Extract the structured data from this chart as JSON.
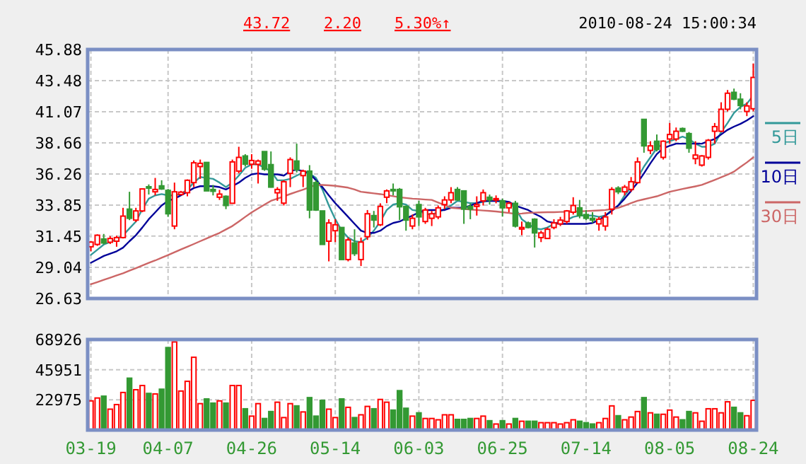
{
  "chart_data": [
    {
      "type": "candlestick",
      "categories": [
        null,
        null,
        null,
        null,
        null,
        null,
        null,
        null,
        null,
        null,
        null,
        null,
        null,
        null,
        null,
        null,
        null,
        null,
        null,
        null,
        null,
        null,
        null,
        null,
        null,
        null,
        null,
        null,
        null,
        null,
        null,
        null,
        null,
        null,
        null,
        null,
        null,
        null,
        null,
        null,
        null,
        null,
        null,
        null,
        null,
        null,
        null,
        null,
        null,
        null,
        null,
        null,
        null,
        null,
        null,
        null,
        null,
        null,
        null,
        null,
        null,
        null,
        null,
        null,
        null,
        null,
        null,
        null,
        null,
        null,
        null,
        null,
        null,
        null,
        null,
        null,
        null,
        null,
        null,
        null,
        null,
        null,
        null,
        null,
        null,
        null,
        null,
        null,
        null,
        null,
        null,
        null,
        null,
        null,
        null,
        null,
        null,
        null,
        null,
        null,
        null,
        null,
        null,
        null
      ],
      "tick_labels": "y",
      "ylim": [
        26.63,
        45.88
      ],
      "yticks": [
        26.63,
        29.04,
        31.45,
        33.85,
        36.26,
        38.66,
        41.07,
        43.48,
        45.88
      ],
      "grid": true,
      "legend": "right",
      "annotations": [
        "43.72",
        "2.20",
        "5.30%↑",
        "2010-08-24 15:00:34"
      ],
      "series": [
        {
          "ohlc": [
            [
              30.63,
              31.06,
              30.28,
              30.99
            ],
            [
              30.81,
              31.59,
              30.7,
              31.52
            ],
            [
              31.23,
              31.62,
              30.81,
              30.92
            ],
            [
              30.98,
              31.45,
              30.84,
              31.27
            ],
            [
              31.06,
              31.48,
              30.63,
              31.34
            ],
            [
              31.34,
              33.64,
              31.27,
              33.0
            ],
            [
              33.54,
              34.88,
              32.69,
              32.83
            ],
            [
              32.69,
              33.64,
              32.54,
              33.4
            ],
            [
              33.4,
              35.1,
              33.3,
              35.1
            ],
            [
              35.27,
              35.45,
              34.67,
              35.2
            ],
            [
              34.88,
              35.95,
              34.6,
              35.06
            ],
            [
              35.34,
              35.77,
              35.03,
              35.1
            ],
            [
              34.99,
              35.1,
              32.94,
              33.18
            ],
            [
              32.23,
              35.59,
              31.98,
              34.88
            ],
            [
              34.67,
              34.95,
              34.6,
              34.85
            ],
            [
              34.81,
              35.84,
              34.53,
              35.77
            ],
            [
              35.59,
              37.3,
              35.24,
              37.12
            ],
            [
              36.83,
              37.37,
              35.88,
              37.08
            ],
            [
              37.15,
              37.15,
              34.95,
              34.95
            ],
            [
              35.06,
              35.41,
              34.6,
              34.92
            ],
            [
              34.46,
              35.03,
              34.25,
              34.7
            ],
            [
              34.53,
              34.6,
              33.54,
              33.82
            ],
            [
              33.99,
              37.37,
              33.99,
              37.19
            ],
            [
              36.48,
              38.36,
              36.3,
              37.54
            ],
            [
              37.65,
              37.79,
              36.83,
              37.01
            ],
            [
              37.01,
              37.79,
              36.66,
              37.3
            ],
            [
              37.0,
              37.37,
              35.52,
              37.26
            ],
            [
              37.99,
              38.0,
              36.5,
              36.62
            ],
            [
              36.98,
              38.0,
              35.2,
              35.24
            ],
            [
              34.8,
              35.24,
              34.18,
              35.06
            ],
            [
              34.0,
              35.77,
              33.82,
              35.66
            ],
            [
              36.3,
              37.54,
              35.24,
              37.37
            ],
            [
              37.26,
              38.6,
              36.37,
              36.59
            ],
            [
              36.13,
              36.59,
              35.24,
              36.48
            ],
            [
              36.48,
              36.94,
              32.83,
              33.47
            ],
            [
              35.59,
              35.77,
              33.4,
              33.47
            ],
            [
              33.4,
              33.4,
              30.81,
              30.81
            ],
            [
              31.06,
              32.76,
              29.5,
              32.47
            ],
            [
              31.87,
              32.76,
              30.99,
              32.33
            ],
            [
              32.12,
              32.12,
              29.64,
              29.64
            ],
            [
              29.64,
              31.34,
              29.5,
              31.16
            ],
            [
              30.92,
              31.98,
              29.92,
              30.1
            ],
            [
              29.64,
              31.34,
              29.14,
              30.99
            ],
            [
              31.41,
              33.47,
              31.16,
              33.18
            ],
            [
              33.04,
              33.4,
              32.12,
              32.69
            ],
            [
              32.33,
              33.99,
              32.23,
              33.75
            ],
            [
              34.46,
              35.06,
              34.0,
              34.95
            ],
            [
              35.06,
              35.52,
              34.6,
              34.95
            ],
            [
              35.06,
              35.17,
              32.69,
              33.72
            ],
            [
              33.75,
              33.82,
              31.87,
              32.69
            ],
            [
              32.23,
              33.12,
              31.98,
              32.83
            ],
            [
              33.89,
              34.18,
              32.23,
              32.94
            ],
            [
              32.58,
              33.64,
              32.4,
              33.47
            ],
            [
              32.83,
              33.4,
              32.23,
              33.18
            ],
            [
              32.94,
              33.82,
              32.76,
              33.64
            ],
            [
              33.89,
              34.53,
              33.54,
              34.25
            ],
            [
              34.25,
              35.24,
              34.0,
              34.81
            ],
            [
              35.06,
              35.24,
              34.18,
              34.25
            ],
            [
              34.95,
              34.95,
              32.4,
              33.54
            ],
            [
              33.75,
              33.99,
              32.76,
              33.54
            ],
            [
              33.75,
              34.53,
              33.04,
              33.89
            ],
            [
              34.18,
              35.06,
              33.82,
              34.81
            ],
            [
              34.46,
              34.67,
              33.89,
              34.25
            ],
            [
              34.25,
              34.6,
              33.99,
              34.35
            ],
            [
              34.18,
              34.35,
              32.96,
              33.64
            ],
            [
              33.64,
              34.1,
              33.3,
              33.99
            ],
            [
              33.99,
              34.18,
              32.12,
              32.23
            ],
            [
              32.0,
              32.58,
              31.52,
              32.12
            ],
            [
              32.47,
              32.58,
              32.05,
              32.12
            ],
            [
              32.76,
              32.83,
              30.57,
              31.7
            ],
            [
              31.34,
              31.87,
              30.99,
              31.7
            ],
            [
              31.27,
              32.12,
              31.27,
              31.98
            ],
            [
              32.12,
              32.76,
              31.98,
              32.47
            ],
            [
              32.4,
              32.94,
              32.23,
              32.69
            ],
            [
              32.58,
              33.47,
              32.4,
              33.4
            ],
            [
              33.3,
              34.46,
              33.12,
              33.82
            ],
            [
              33.64,
              34.25,
              32.83,
              33.04
            ],
            [
              33.12,
              33.47,
              32.69,
              32.83
            ],
            [
              32.83,
              33.3,
              32.47,
              32.69
            ],
            [
              32.4,
              32.94,
              31.87,
              32.76
            ],
            [
              32.23,
              33.3,
              31.87,
              32.94
            ],
            [
              33.54,
              35.24,
              33.12,
              35.06
            ],
            [
              35.17,
              35.31,
              34.7,
              34.88
            ],
            [
              34.88,
              35.41,
              34.6,
              35.24
            ],
            [
              35.06,
              36.02,
              34.88,
              35.66
            ],
            [
              35.59,
              37.54,
              35.52,
              37.19
            ],
            [
              40.48,
              40.48,
              37.9,
              38.43
            ],
            [
              38.08,
              38.79,
              37.79,
              38.43
            ],
            [
              38.79,
              39.31,
              38.0,
              38.15
            ],
            [
              37.54,
              38.86,
              37.37,
              38.79
            ],
            [
              38.96,
              40.2,
              38.6,
              39.31
            ],
            [
              38.96,
              39.85,
              38.79,
              39.56
            ],
            [
              39.77,
              39.85,
              39.5,
              39.56
            ],
            [
              39.38,
              39.5,
              37.9,
              38.25
            ],
            [
              37.44,
              38.79,
              37.01,
              37.72
            ],
            [
              36.94,
              37.72,
              36.83,
              37.65
            ],
            [
              37.54,
              38.96,
              37.37,
              38.86
            ],
            [
              39.56,
              40.2,
              38.6,
              39.92
            ],
            [
              39.56,
              41.8,
              39.5,
              41.26
            ],
            [
              41.26,
              42.75,
              41.09,
              42.5
            ],
            [
              42.57,
              42.86,
              41.97,
              42.04
            ],
            [
              42.04,
              42.5,
              41.26,
              41.55
            ],
            [
              41.09,
              41.8,
              40.73,
              41.52
            ],
            [
              41.3,
              44.8,
              41.1,
              43.72
            ]
          ],
          "colors": [
            "#ff0000",
            "#ff0000",
            "#339933",
            "#ff0000",
            "#ff0000",
            "#ff0000",
            "#339933",
            "#ff0000",
            "#ff0000",
            "#339933",
            "#ff0000",
            "#339933",
            "#339933",
            "#ff0000",
            "#ff0000",
            "#ff0000",
            "#ff0000",
            "#ff0000",
            "#339933",
            "#339933",
            "#ff0000",
            "#339933",
            "#ff0000",
            "#ff0000",
            "#339933",
            "#ff0000",
            "#ff0000",
            "#339933",
            "#339933",
            "#ff0000",
            "#ff0000",
            "#ff0000",
            "#339933",
            "#ff0000",
            "#339933",
            "#339933",
            "#339933",
            "#ff0000",
            "#ff0000",
            "#339933",
            "#ff0000",
            "#339933",
            "#ff0000",
            "#ff0000",
            "#339933",
            "#ff0000",
            "#ff0000",
            "#339933",
            "#339933",
            "#339933",
            "#ff0000",
            "#339933",
            "#ff0000",
            "#ff0000",
            "#ff0000",
            "#ff0000",
            "#ff0000",
            "#339933",
            "#339933",
            "#339933",
            "#ff0000",
            "#ff0000",
            "#339933",
            "#ff0000",
            "#339933",
            "#ff0000",
            "#339933",
            "#ff0000",
            "#339933",
            "#339933",
            "#ff0000",
            "#ff0000",
            "#ff0000",
            "#ff0000",
            "#ff0000",
            "#ff0000",
            "#339933",
            "#339933",
            "#339933",
            "#ff0000",
            "#ff0000",
            "#ff0000",
            "#339933",
            "#ff0000",
            "#ff0000",
            "#ff0000",
            "#339933",
            "#ff0000",
            "#339933",
            "#ff0000",
            "#ff0000",
            "#ff0000",
            "#339933",
            "#339933",
            "#ff0000",
            "#ff0000",
            "#ff0000",
            "#ff0000",
            "#ff0000",
            "#ff0000",
            "#339933",
            "#339933",
            "#ff0000",
            "#ff0000"
          ]
        },
        {
          "type": "line",
          "name": "5日",
          "color": "#339999",
          "values": [
            30.0,
            30.4,
            30.8,
            31.0,
            31.2,
            31.52,
            32.05,
            32.58,
            33.54,
            34.35,
            34.6,
            34.7,
            34.6,
            34.6,
            34.7,
            35.06,
            35.59,
            36.02,
            35.95,
            35.88,
            35.59,
            35.24,
            35.59,
            36.13,
            36.73,
            37.0,
            37.0,
            36.73,
            36.48,
            35.77,
            35.77,
            35.88,
            36.13,
            36.37,
            36.3,
            35.95,
            35.06,
            33.82,
            32.76,
            31.87,
            31.34,
            31.06,
            30.99,
            31.34,
            31.87,
            32.58,
            33.47,
            33.89,
            34.0,
            33.89,
            33.47,
            33.4,
            33.18,
            33.12,
            33.29,
            33.54,
            33.82,
            34.18,
            34.1,
            34.0,
            34.0,
            34.1,
            34.18,
            34.18,
            34.1,
            34.0,
            33.64,
            32.76,
            32.4,
            32.05,
            31.98,
            32.12,
            32.4,
            32.58,
            32.69,
            32.94,
            33.04,
            33.04,
            33.04,
            32.94,
            33.04,
            33.47,
            33.82,
            34.6,
            35.24,
            35.95,
            36.83,
            37.54,
            38.25,
            38.6,
            38.79,
            38.96,
            39.14,
            38.96,
            38.6,
            38.36,
            38.36,
            38.6,
            39.49,
            40.2,
            40.98,
            41.44,
            41.69,
            42.33
          ]
        },
        {
          "type": "line",
          "name": "10日",
          "color": "#000099",
          "values": [
            29.39,
            29.65,
            29.92,
            30.1,
            30.28,
            30.56,
            31.06,
            31.52,
            32.12,
            32.76,
            33.29,
            33.82,
            34.18,
            34.35,
            34.6,
            34.88,
            35.17,
            35.31,
            35.31,
            35.31,
            35.24,
            35.06,
            35.31,
            35.59,
            35.95,
            36.23,
            36.3,
            36.23,
            36.23,
            36.23,
            36.13,
            36.48,
            36.59,
            36.48,
            36.3,
            35.77,
            35.24,
            34.6,
            34.0,
            33.47,
            32.94,
            32.4,
            31.87,
            31.7,
            31.7,
            31.87,
            32.23,
            32.47,
            32.58,
            32.83,
            33.04,
            33.29,
            33.47,
            33.47,
            33.47,
            33.47,
            33.64,
            33.64,
            33.64,
            33.82,
            34.0,
            34.18,
            34.18,
            34.18,
            34.18,
            34.1,
            33.82,
            33.64,
            33.47,
            33.18,
            32.94,
            32.58,
            32.47,
            32.4,
            32.4,
            32.4,
            32.4,
            32.4,
            32.47,
            32.69,
            33.04,
            33.4,
            33.82,
            34.35,
            34.95,
            35.59,
            36.3,
            37.08,
            37.79,
            38.25,
            38.43,
            38.6,
            38.6,
            38.6,
            38.6,
            38.6,
            38.79,
            38.96,
            39.31,
            39.67,
            39.92,
            40.13,
            40.4,
            40.73
          ]
        },
        {
          "type": "line",
          "name": "30日",
          "color": "#cc6666",
          "values": [
            27.73,
            27.9,
            28.07,
            28.24,
            28.41,
            28.58,
            28.78,
            28.98,
            29.18,
            29.38,
            29.57,
            29.78,
            29.99,
            30.2,
            30.42,
            30.63,
            30.84,
            31.06,
            31.27,
            31.49,
            31.7,
            31.97,
            32.23,
            32.58,
            32.94,
            33.29,
            33.59,
            33.89,
            34.18,
            34.35,
            34.53,
            34.71,
            34.88,
            35.05,
            35.23,
            35.41,
            35.41,
            35.38,
            35.34,
            35.27,
            35.2,
            35.06,
            34.88,
            34.82,
            34.76,
            34.7,
            34.62,
            34.54,
            34.46,
            34.4,
            34.35,
            34.32,
            34.28,
            34.25,
            34.05,
            33.85,
            33.64,
            33.6,
            33.56,
            33.51,
            33.47,
            33.43,
            33.4,
            33.36,
            33.3,
            33.24,
            33.18,
            33.2,
            33.25,
            33.27,
            33.29,
            33.3,
            33.3,
            33.32,
            33.33,
            33.35,
            33.37,
            33.39,
            33.41,
            33.44,
            33.47,
            33.55,
            33.64,
            33.82,
            34.0,
            34.18,
            34.3,
            34.42,
            34.53,
            34.7,
            34.88,
            34.99,
            35.1,
            35.2,
            35.3,
            35.41,
            35.6,
            35.8,
            36.0,
            36.2,
            36.44,
            36.8,
            37.15,
            37.54
          ]
        }
      ]
    },
    {
      "type": "bar",
      "categories": [
        "03-19",
        null,
        null,
        null,
        null,
        null,
        null,
        null,
        null,
        null,
        null,
        null,
        "04-07",
        null,
        null,
        null,
        null,
        null,
        null,
        null,
        null,
        null,
        null,
        null,
        null,
        "04-26",
        null,
        null,
        null,
        null,
        null,
        null,
        null,
        null,
        null,
        null,
        null,
        null,
        "05-14",
        null,
        null,
        null,
        null,
        null,
        null,
        null,
        null,
        null,
        null,
        null,
        null,
        "06-03",
        null,
        null,
        null,
        null,
        null,
        null,
        null,
        null,
        null,
        null,
        null,
        null,
        "06-25",
        null,
        null,
        null,
        null,
        null,
        null,
        null,
        null,
        null,
        null,
        null,
        null,
        "07-14",
        null,
        null,
        null,
        null,
        null,
        null,
        null,
        null,
        null,
        null,
        null,
        null,
        "08-05",
        null,
        null,
        null,
        null,
        null,
        null,
        null,
        null,
        null,
        null,
        null,
        null,
        "08-24"
      ],
      "ylim": [
        0,
        68926
      ],
      "yticks": [
        22975,
        45951,
        68926
      ],
      "grid": true,
      "values": [
        22200,
        24400,
        25800,
        15900,
        19400,
        28600,
        39500,
        30700,
        33900,
        27900,
        27500,
        31100,
        62800,
        67100,
        29700,
        37100,
        55400,
        20100,
        23700,
        20500,
        22200,
        20500,
        33900,
        33900,
        16200,
        10600,
        20100,
        8800,
        14100,
        21200,
        9500,
        20100,
        18400,
        13800,
        24700,
        10600,
        22600,
        15900,
        9500,
        23700,
        17300,
        9500,
        11600,
        18000,
        16200,
        23300,
        21200,
        15200,
        30000,
        16600,
        10600,
        13100,
        8800,
        8800,
        7800,
        11600,
        11600,
        8100,
        8100,
        8800,
        8800,
        10600,
        7100,
        4600,
        7100,
        4600,
        8800,
        6700,
        6700,
        6700,
        5600,
        5600,
        5600,
        4600,
        5600,
        7800,
        6700,
        5600,
        4600,
        5600,
        8800,
        18400,
        10900,
        7800,
        9900,
        14100,
        24700,
        13100,
        12000,
        12000,
        15200,
        9900,
        7800,
        14100,
        13100,
        6700,
        16200,
        16200,
        13100,
        21500,
        17300,
        13100,
        10900,
        22600
      ],
      "colors": [
        "#ff0000",
        "#ff0000",
        "#339933",
        "#ff0000",
        "#ff0000",
        "#ff0000",
        "#339933",
        "#ff0000",
        "#ff0000",
        "#339933",
        "#ff0000",
        "#339933",
        "#339933",
        "#ff0000",
        "#ff0000",
        "#ff0000",
        "#ff0000",
        "#ff0000",
        "#339933",
        "#339933",
        "#ff0000",
        "#339933",
        "#ff0000",
        "#ff0000",
        "#339933",
        "#ff0000",
        "#ff0000",
        "#339933",
        "#339933",
        "#ff0000",
        "#ff0000",
        "#ff0000",
        "#339933",
        "#ff0000",
        "#339933",
        "#339933",
        "#339933",
        "#ff0000",
        "#ff0000",
        "#339933",
        "#ff0000",
        "#339933",
        "#ff0000",
        "#ff0000",
        "#339933",
        "#ff0000",
        "#ff0000",
        "#339933",
        "#339933",
        "#339933",
        "#ff0000",
        "#339933",
        "#ff0000",
        "#ff0000",
        "#ff0000",
        "#ff0000",
        "#ff0000",
        "#339933",
        "#339933",
        "#339933",
        "#ff0000",
        "#ff0000",
        "#339933",
        "#ff0000",
        "#339933",
        "#ff0000",
        "#339933",
        "#ff0000",
        "#339933",
        "#339933",
        "#ff0000",
        "#ff0000",
        "#ff0000",
        "#ff0000",
        "#ff0000",
        "#ff0000",
        "#339933",
        "#339933",
        "#339933",
        "#ff0000",
        "#ff0000",
        "#ff0000",
        "#339933",
        "#ff0000",
        "#ff0000",
        "#ff0000",
        "#339933",
        "#ff0000",
        "#339933",
        "#ff0000",
        "#ff0000",
        "#ff0000",
        "#339933",
        "#339933",
        "#ff0000",
        "#ff0000",
        "#ff0000",
        "#ff0000",
        "#ff0000",
        "#ff0000",
        "#339933",
        "#339933",
        "#ff0000",
        "#ff0000"
      ]
    }
  ]
}
